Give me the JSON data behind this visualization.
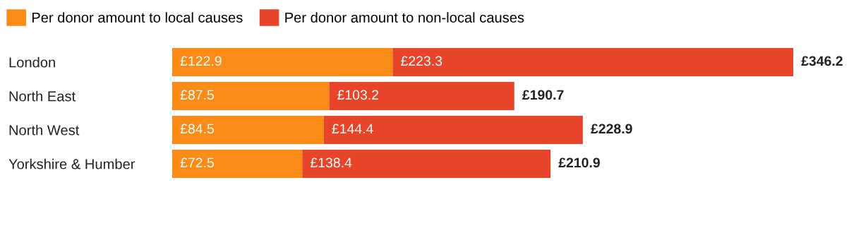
{
  "chart_data": {
    "type": "bar",
    "orientation": "horizontal",
    "stacked": true,
    "legend": "top left",
    "categories": [
      "London",
      "North East",
      "North West",
      "Yorkshire & Humber"
    ],
    "series": [
      {
        "name": "Per donor amount to local causes",
        "color": "#f98b16",
        "values": [
          122.9,
          87.5,
          84.5,
          72.5
        ],
        "value_labels": [
          "£122.9",
          "£87.5",
          "£84.5",
          "£72.5"
        ]
      },
      {
        "name": "Per donor amount to non-local causes",
        "color": "#e84429",
        "values": [
          223.3,
          103.2,
          144.4,
          138.4
        ],
        "value_labels": [
          "£223.3",
          "£103.2",
          "£144.4",
          "£138.4"
        ]
      }
    ],
    "totals": [
      "£346.2",
      "£190.7",
      "£228.9",
      "£210.9"
    ]
  }
}
